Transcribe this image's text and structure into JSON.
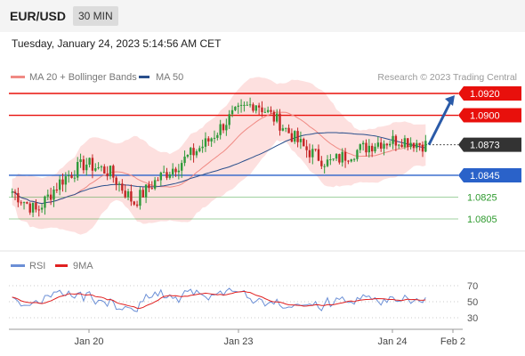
{
  "header": {
    "pair": "EUR/USD",
    "timeframe": "30 MIN"
  },
  "datetime": "Tuesday, January 24, 2023 5:14:56 AM CET",
  "legend": {
    "ma20": "MA 20 + Bollinger Bands",
    "ma50": "MA 50",
    "copyright": "Research © 2023 Trading Central",
    "rsi": "RSI",
    "rsi_ma": "9MA"
  },
  "colors": {
    "resistance": "#e8100c",
    "support": "#2a62c9",
    "target": "#2e9a2e",
    "current": "#333333",
    "ma20": "#f08a84",
    "ma50": "#2a4f8c",
    "band": "#fde0df",
    "bull": "#2f9a3a",
    "bear": "#c42525",
    "rsi": "#6b8fd6",
    "rsi_ma": "#e02020",
    "arrow": "#2a5aa8"
  },
  "chart_data": [
    {
      "type": "candlestick",
      "title": "",
      "ylim": [
        1.0795,
        1.0935
      ],
      "x_ticks": [
        "Jan 20",
        "Jan 23",
        "Jan 24",
        "Feb 2"
      ],
      "levels": [
        {
          "label": "1.0920",
          "value": 1.092,
          "kind": "resistance"
        },
        {
          "label": "1.0900",
          "value": 1.09,
          "kind": "resistance"
        },
        {
          "label": "1.0873",
          "value": 1.0873,
          "kind": "current"
        },
        {
          "label": "1.0845",
          "value": 1.0845,
          "kind": "support"
        },
        {
          "label": "1.0825",
          "value": 1.0825,
          "kind": "target"
        },
        {
          "label": "1.0805",
          "value": 1.0805,
          "kind": "target"
        }
      ],
      "series": [
        {
          "name": "MA 20 + Bollinger Bands",
          "approx_close": [
            1.083,
            1.0812,
            1.084,
            1.0856,
            1.0848,
            1.082,
            1.0842,
            1.0858,
            1.0875,
            1.0899,
            1.0912,
            1.0893,
            1.087,
            1.0856,
            1.0866,
            1.0875,
            1.0878,
            1.0873
          ]
        },
        {
          "name": "MA 50"
        }
      ],
      "projection": {
        "from": 1.0873,
        "to": 1.092
      }
    },
    {
      "type": "line",
      "title": "",
      "ylim": [
        20,
        80
      ],
      "y_ticks": [
        30,
        50,
        70
      ],
      "series": [
        {
          "name": "RSI"
        },
        {
          "name": "9MA"
        }
      ]
    }
  ]
}
